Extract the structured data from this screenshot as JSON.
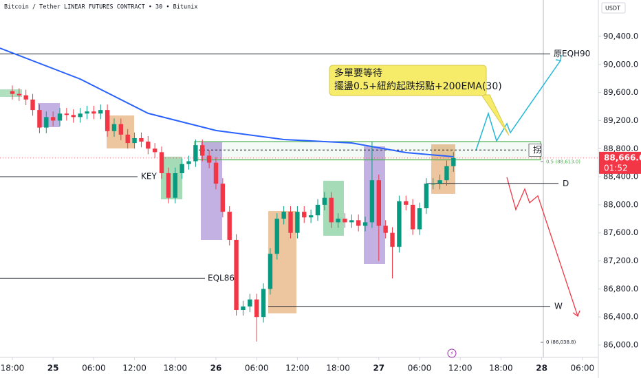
{
  "chart_data": {
    "type": "candlestick",
    "title": "Bitcoin / Tether LINEAR FUTURES CONTRACT • 30 • Bitunix",
    "currency": "USDT",
    "open": [
      89620,
      89580,
      89560,
      89500,
      89350,
      89100,
      89250,
      89200,
      89300,
      89280,
      89250,
      89300,
      89330,
      89300,
      89350,
      89050,
      89150,
      89000,
      88880,
      88950,
      88900,
      88800,
      88750,
      88450,
      88100,
      88450,
      88580,
      88620,
      88850,
      88700,
      88600,
      88300,
      87900,
      87500,
      86500,
      86550,
      86650,
      86400,
      86800,
      87300,
      87800,
      87900,
      87600,
      87900,
      87820,
      87850,
      88000,
      88100,
      87750,
      87800,
      87750,
      87780,
      87700,
      87750,
      88350,
      87700,
      87600,
      87400,
      88050,
      88000,
      87650,
      87950,
      88300,
      88300,
      88350,
      88550
    ],
    "high": [
      89700,
      89660,
      89640,
      89580,
      89430,
      89330,
      89330,
      89380,
      89380,
      89360,
      89380,
      89410,
      89410,
      89430,
      89430,
      89230,
      89230,
      89080,
      89030,
      89030,
      88980,
      88880,
      88830,
      88530,
      88530,
      88660,
      88700,
      88930,
      88930,
      88780,
      88680,
      88380,
      87980,
      87580,
      86630,
      86730,
      86730,
      86880,
      87380,
      87880,
      87980,
      87980,
      87980,
      87980,
      87930,
      88080,
      88180,
      88180,
      87880,
      87880,
      87860,
      87860,
      87830,
      88900,
      88430,
      87780,
      87680,
      88130,
      88130,
      88080,
      88030,
      88380,
      88380,
      88430,
      88630,
      88750
    ],
    "low": [
      89500,
      89480,
      89420,
      89270,
      89020,
      89020,
      89120,
      89120,
      89200,
      89170,
      89170,
      89220,
      89220,
      89220,
      88970,
      88970,
      88920,
      88800,
      88800,
      88820,
      88720,
      88670,
      88370,
      88020,
      88020,
      88370,
      88500,
      88540,
      88620,
      88520,
      88220,
      87820,
      87420,
      86420,
      86420,
      86470,
      86050,
      86320,
      86720,
      87220,
      87720,
      87520,
      87520,
      87740,
      87740,
      87770,
      87920,
      87670,
      87670,
      87670,
      87670,
      87620,
      87620,
      87670,
      87200,
      87520,
      86950,
      87320,
      87920,
      87570,
      87570,
      87870,
      88220,
      88220,
      88270,
      88470
    ],
    "close": [
      89580,
      89560,
      89500,
      89350,
      89100,
      89250,
      89200,
      89300,
      89280,
      89250,
      89300,
      89330,
      89300,
      89350,
      89050,
      89150,
      89000,
      88880,
      88950,
      88900,
      88800,
      88750,
      88450,
      88100,
      88450,
      88580,
      88620,
      88850,
      88700,
      88600,
      88300,
      87900,
      87500,
      86500,
      86550,
      86650,
      86400,
      86800,
      87300,
      87800,
      87900,
      87600,
      87900,
      87820,
      87850,
      88000,
      88100,
      87750,
      87800,
      87750,
      87780,
      87700,
      87750,
      88350,
      87700,
      87600,
      87400,
      88050,
      88000,
      87650,
      87950,
      88300,
      88300,
      88350,
      88550,
      88666.6
    ],
    "up_color": "#089981",
    "down_color": "#f23645",
    "ema": {
      "x": [
        -1.82,
        10,
        20,
        30,
        40,
        50,
        58,
        65
      ],
      "values": [
        90233,
        89792,
        89303,
        89058,
        88930,
        88881,
        88744,
        88685
      ],
      "color": "#2962ff"
    },
    "xlim": [
      -1.82,
      86.35
    ],
    "xticks": [
      {
        "value": 0,
        "label": "18:00"
      },
      {
        "value": 6,
        "label": "25"
      },
      {
        "value": 12,
        "label": "06:00"
      },
      {
        "value": 18,
        "label": "12:00"
      },
      {
        "value": 24,
        "label": "18:00"
      },
      {
        "value": 30,
        "label": "26"
      },
      {
        "value": 36,
        "label": "06:00"
      },
      {
        "value": 42,
        "label": "12:00"
      },
      {
        "value": 48,
        "label": "18:00"
      },
      {
        "value": 54,
        "label": "27"
      },
      {
        "value": 60,
        "label": "06:00"
      },
      {
        "value": 66,
        "label": "12:00"
      },
      {
        "value": 72,
        "label": "18:00"
      },
      {
        "value": 78,
        "label": "28"
      },
      {
        "value": 84,
        "label": "06:00"
      }
    ],
    "ylim": [
      85824,
      90919
    ],
    "yticks": [
      {
        "value": 86000,
        "label": "86,000.0"
      },
      {
        "value": 86400,
        "label": "86,400.0"
      },
      {
        "value": 86800,
        "label": "86,800.0"
      },
      {
        "value": 87200,
        "label": "87,200.0"
      },
      {
        "value": 87600,
        "label": "87,600.0"
      },
      {
        "value": 88000,
        "label": "88,000.0"
      },
      {
        "value": 88400,
        "label": "88,400.0"
      },
      {
        "value": 88800,
        "label": "88,800.0"
      },
      {
        "value": 89200,
        "label": "89,200.0"
      },
      {
        "value": 89600,
        "label": "89,600.0"
      },
      {
        "value": 90000,
        "label": "90,000.0"
      },
      {
        "value": 90400,
        "label": "90,400.0"
      }
    ],
    "levels": [
      {
        "label": "原EQH90",
        "value": 90150
      },
      {
        "label": "KEY",
        "value": 88400
      },
      {
        "label": "EQL86",
        "value": 86950
      },
      {
        "label": "D",
        "value": 88300
      },
      {
        "label": "W",
        "value": 86550
      },
      {
        "label": "拐",
        "value": 88780
      }
    ],
    "zone": {
      "top": 88900,
      "bottom": 88640
    },
    "fib": [
      {
        "value": 88613,
        "label": "0.5 (88,613.0)"
      },
      {
        "value": 86038.8,
        "label": "0 (86,038.8)"
      }
    ],
    "last_price": {
      "value": 88666.6,
      "label": "88,666.6"
    },
    "countdown": "01:52",
    "note": [
      "多單要等待",
      "擺盪0.5+紐約起跌拐點+200EMA(30)"
    ]
  }
}
